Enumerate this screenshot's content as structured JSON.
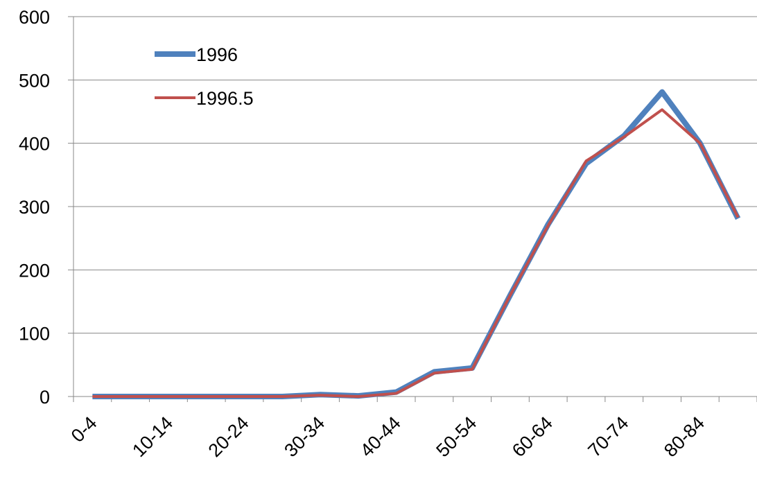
{
  "chart_data": {
    "type": "line",
    "categories": [
      "0-4",
      null,
      "10-14",
      null,
      "20-24",
      null,
      "30-34",
      null,
      "40-44",
      null,
      "50-54",
      null,
      "60-64",
      null,
      "70-74",
      null,
      "80-84",
      null
    ],
    "series": [
      {
        "name": "1996",
        "color": "#4f81bd",
        "values": [
          0,
          0,
          0,
          0,
          0,
          0,
          3,
          1,
          7,
          39,
          45,
          160,
          272,
          368,
          412,
          481,
          400,
          281
        ]
      },
      {
        "name": "1996.5",
        "color": "#c0504d",
        "values": [
          0,
          0,
          0,
          0,
          0,
          0,
          2,
          0,
          5,
          37,
          43,
          160,
          270,
          372,
          410,
          453,
          400,
          283
        ]
      }
    ],
    "ylim": [
      0,
      600
    ],
    "yticks": [
      0,
      100,
      200,
      300,
      400,
      500,
      600
    ],
    "grid": true,
    "legend": "upper-left"
  }
}
